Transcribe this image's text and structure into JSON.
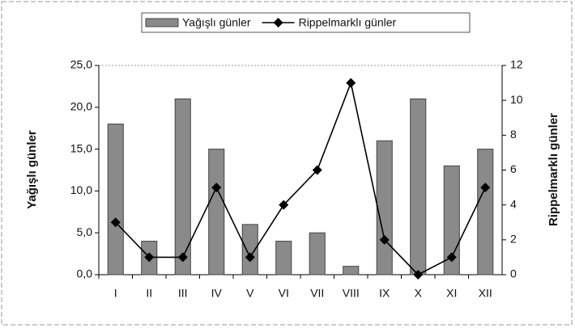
{
  "chart_data": {
    "type": "combo",
    "categories": [
      "I",
      "II",
      "III",
      "IV",
      "V",
      "VI",
      "VII",
      "VIII",
      "IX",
      "X",
      "XI",
      "XII"
    ],
    "series": [
      {
        "name": "Yağışlı günler",
        "type": "bar",
        "color": "#8a8a8a",
        "values": [
          18,
          4,
          21,
          15,
          6,
          4,
          5,
          1,
          16,
          21,
          13,
          15
        ]
      },
      {
        "name": "Rippelmarklı günler",
        "type": "line",
        "axis": "y2",
        "color": "#000000",
        "values": [
          3,
          1,
          1,
          5,
          1,
          4,
          6,
          11,
          2,
          0,
          1,
          5
        ]
      }
    ],
    "ylabel": "Yağışlı günler",
    "y2label": "Rippelmarklı günler",
    "ylim": [
      0,
      25
    ],
    "yticks": [
      {
        "value": 0,
        "label": "0,0"
      },
      {
        "value": 5,
        "label": "5,0"
      },
      {
        "value": 10,
        "label": "10,0"
      },
      {
        "value": 15,
        "label": "15,0"
      },
      {
        "value": 20,
        "label": "20,0"
      },
      {
        "value": 25,
        "label": "25,0"
      }
    ],
    "y2lim": [
      0,
      12
    ],
    "y2ticks": [
      0,
      2,
      4,
      6,
      8,
      10,
      12
    ],
    "legend": "top"
  }
}
